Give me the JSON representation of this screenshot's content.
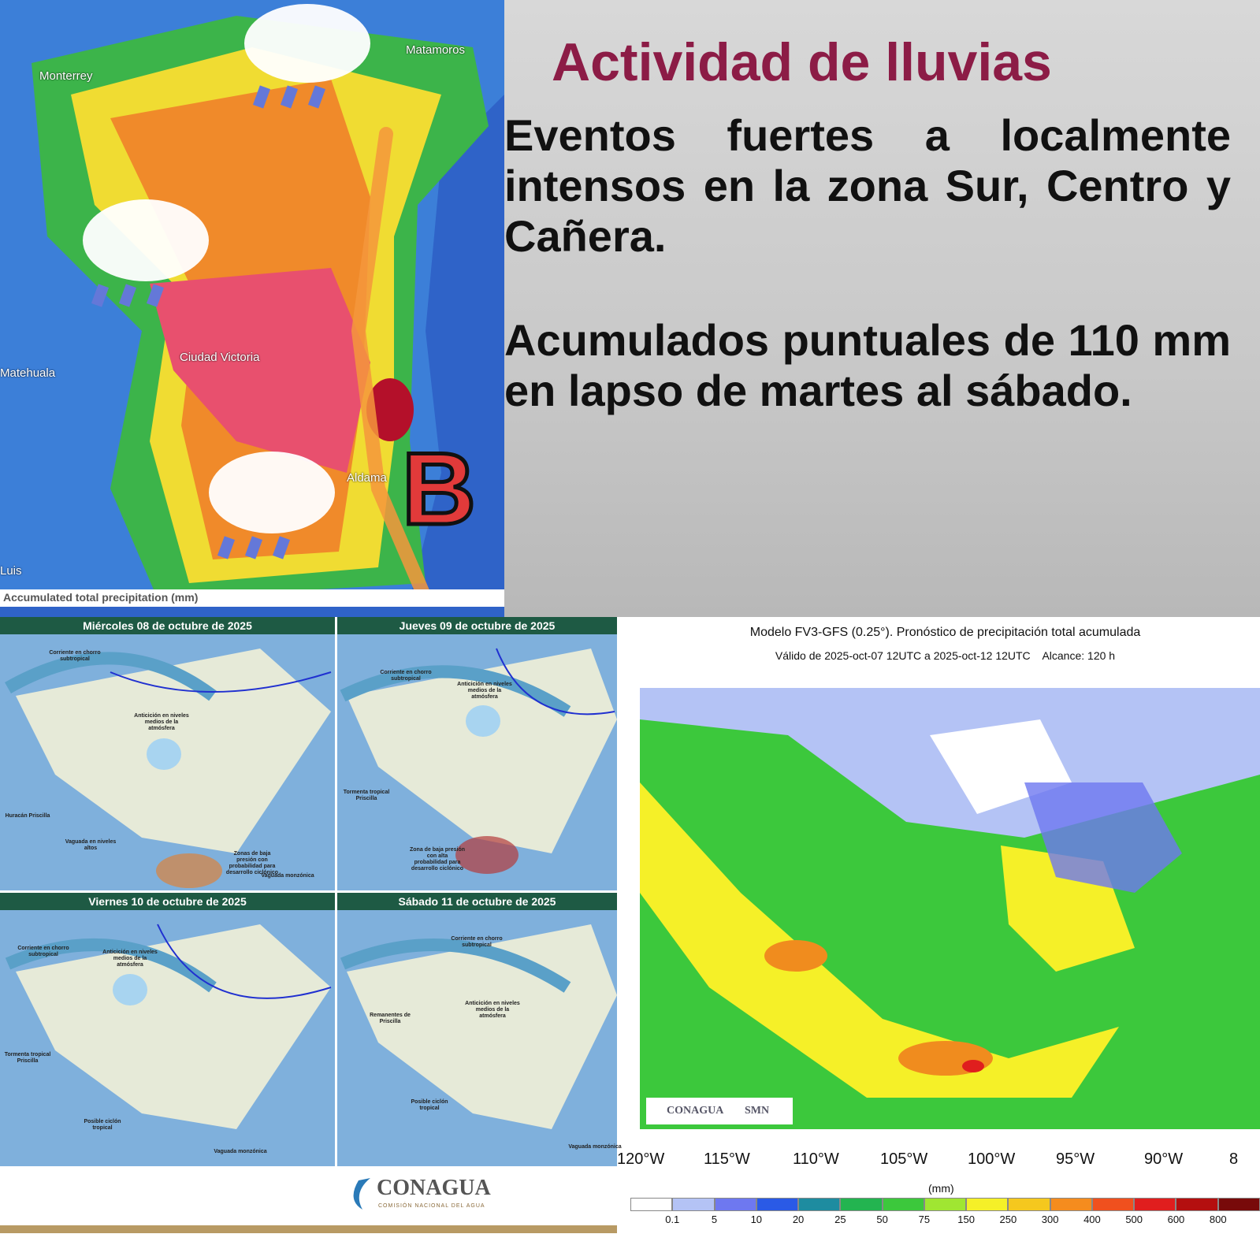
{
  "header": {
    "title": "Actividad de lluvias",
    "paragraphs": [
      "Eventos fuertes a localmente intensos en la zona Sur, Centro y Cañera.",
      "Acumulados puntuales de 110 mm en lapso de martes al sábado."
    ]
  },
  "top_map": {
    "labels": [
      "Monterrey",
      "Matamoros",
      "Matehuala",
      "Ciudad Victoria",
      "Aldama",
      "Luis"
    ],
    "low_marker": "B",
    "caption": "Accumulated total precipitation (mm)"
  },
  "panels": [
    {
      "date": "Miércoles 08 de octubre de 2025",
      "labels": [
        "Corriente en chorro subtropical",
        "Anticición en niveles medios de la atmósfera",
        "Huracán Priscilla",
        "Vaguada en niveles altos",
        "Zonas de baja presión con probabilidad para desarrollo ciclónico",
        "Vaguada monzónica"
      ]
    },
    {
      "date": "Jueves 09 de octubre de 2025",
      "labels": [
        "Corriente en chorro subtropical",
        "Anticición en niveles medios de la atmósfera",
        "Tormenta tropical Priscilla",
        "Zona de baja presión con alta probabilidad para desarrollo ciclónico"
      ]
    },
    {
      "date": "Viernes 10 de octubre de 2025",
      "labels": [
        "Corriente en chorro subtropical",
        "Anticición en niveles medios de la atmósfera",
        "Tormenta tropical Priscilla",
        "Posible ciclón tropical",
        "Vaguada monzónica"
      ]
    },
    {
      "date": "Sábado 11 de octubre de 2025",
      "labels": [
        "Corriente en chorro subtropical",
        "Anticición en niveles medios de la atmósfera",
        "Remanentes de Priscilla",
        "Posible ciclón tropical",
        "Vaguada monzónica"
      ]
    }
  ],
  "logo": {
    "name": "CONAGUA",
    "subtitle": "COMISIÓN NACIONAL DEL AGUA"
  },
  "gfs_map": {
    "title": "Modelo FV3-GFS (0.25°). Pronóstico de precipitación total acumulada",
    "subtitle": "Válido de 2025-oct-07 12UTC a 2025-oct-12 12UTC    Alcance: 120 h",
    "lon_labels": [
      "120°W",
      "115°W",
      "110°W",
      "105°W",
      "100°W",
      "95°W",
      "90°W",
      "8"
    ],
    "unit": "(mm)",
    "logos": [
      "CONAGUA",
      "SMN"
    ],
    "colorbar_labels": [
      "0.1",
      "5",
      "10",
      "20",
      "25",
      "50",
      "75",
      "150",
      "250",
      "300",
      "400",
      "500",
      "600",
      "800"
    ],
    "colorbar_colors": [
      "#ffffff",
      "#b4c3f5",
      "#6e78f0",
      "#2a5ae6",
      "#1e8ca0",
      "#23b450",
      "#3cc83c",
      "#a0e632",
      "#f5f028",
      "#f5c81e",
      "#f58c1e",
      "#f0501e",
      "#e01e1e",
      "#b40f0f",
      "#780a0a"
    ]
  }
}
